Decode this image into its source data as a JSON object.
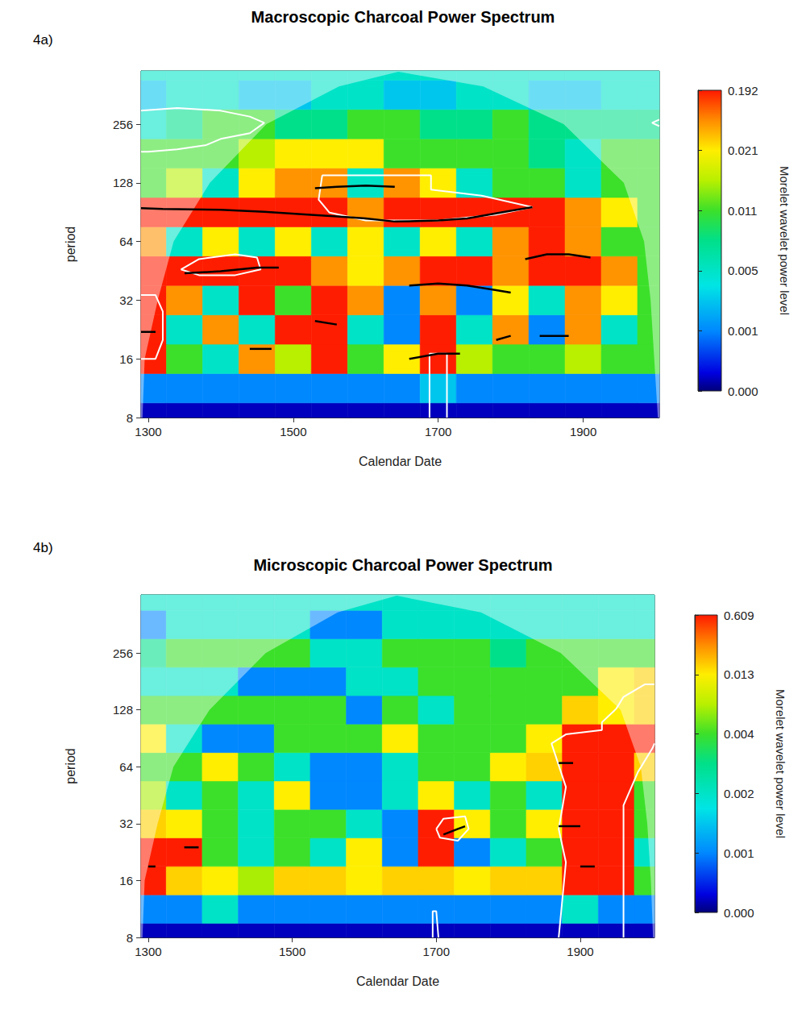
{
  "chart_data": [
    {
      "type": "heatmap",
      "title": "Macroscopic Charcoal Power Spectrum",
      "annotations": [
        "4a)"
      ],
      "x_label": "Calendar Date",
      "y_label": "period",
      "log": "y",
      "xlim": [
        1290,
        2005
      ],
      "xticks": [
        1300,
        1500,
        1700,
        1900
      ],
      "ylim": [
        8,
        480
      ],
      "yticks": [
        8,
        16,
        32,
        64,
        128,
        256
      ],
      "x": [
        1300,
        1350,
        1400,
        1450,
        1500,
        1550,
        1600,
        1650,
        1700,
        1750,
        1800,
        1850,
        1900,
        1950,
        2000
      ],
      "y": [
        8,
        11.3,
        16,
        22.6,
        32,
        45.3,
        64,
        90.5,
        128,
        181,
        256,
        362,
        512
      ],
      "values": [
        [
          0.0002,
          0.0002,
          0.0002,
          0.0002,
          0.0002,
          0.0002,
          0.0002,
          0.0002,
          0.0002,
          0.0002,
          0.0002,
          0.0002,
          0.0002,
          0.0002,
          0.0002
        ],
        [
          0.001,
          0.001,
          0.001,
          0.001,
          0.001,
          0.001,
          0.001,
          0.001,
          0.003,
          0.001,
          0.001,
          0.001,
          0.001,
          0.001,
          0.001
        ],
        [
          0.19,
          0.011,
          0.005,
          0.1,
          0.016,
          0.19,
          0.011,
          0.021,
          0.19,
          0.016,
          0.011,
          0.011,
          0.016,
          0.011,
          0.011
        ],
        [
          0.19,
          0.005,
          0.1,
          0.005,
          0.19,
          0.19,
          0.005,
          0.001,
          0.19,
          0.005,
          0.1,
          0.001,
          0.1,
          0.005,
          0.011
        ],
        [
          0.19,
          0.1,
          0.005,
          0.19,
          0.011,
          0.19,
          0.1,
          0.001,
          0.1,
          0.001,
          0.021,
          0.005,
          0.1,
          0.021,
          0.011
        ],
        [
          0.19,
          0.19,
          0.19,
          0.19,
          0.19,
          0.1,
          0.021,
          0.1,
          0.19,
          0.19,
          0.1,
          0.19,
          0.19,
          0.1,
          0.011
        ],
        [
          0.1,
          0.005,
          0.021,
          0.005,
          0.021,
          0.005,
          0.021,
          0.005,
          0.021,
          0.005,
          0.1,
          0.19,
          0.1,
          0.011,
          0.011
        ],
        [
          0.19,
          0.19,
          0.19,
          0.19,
          0.19,
          0.19,
          0.1,
          0.19,
          0.19,
          0.19,
          0.19,
          0.19,
          0.1,
          0.021,
          0.011
        ],
        [
          0.011,
          0.016,
          0.005,
          0.021,
          0.1,
          0.1,
          0.005,
          0.1,
          0.021,
          0.005,
          0.011,
          0.011,
          0.005,
          0.011,
          0.011
        ],
        [
          0.011,
          0.011,
          0.011,
          0.016,
          0.021,
          0.021,
          0.021,
          0.011,
          0.011,
          0.011,
          0.011,
          0.008,
          0.005,
          0.011,
          0.011
        ],
        [
          0.005,
          0.008,
          0.011,
          0.011,
          0.008,
          0.008,
          0.011,
          0.011,
          0.008,
          0.008,
          0.011,
          0.008,
          0.008,
          0.008,
          0.008
        ],
        [
          0.003,
          0.005,
          0.005,
          0.003,
          0.003,
          0.005,
          0.005,
          0.003,
          0.003,
          0.005,
          0.005,
          0.003,
          0.003,
          0.005,
          0.005
        ],
        [
          0.005,
          0.005,
          0.005,
          0.005,
          0.005,
          0.005,
          0.005,
          0.005,
          0.005,
          0.005,
          0.005,
          0.005,
          0.005,
          0.005,
          0.005
        ]
      ],
      "colorbar": {
        "label": "Morelet wavelet power level",
        "range": [
          0,
          0.192
        ],
        "ticks": [
          {
            "value": 0,
            "label": "0.000"
          },
          0.001,
          0.005,
          0.011,
          0.021,
          0.192
        ]
      },
      "cone_of_influence": [
        [
          1292,
          8
        ],
        [
          1295,
          16
        ],
        [
          1313,
          32
        ],
        [
          1335,
          64
        ],
        [
          1385,
          128
        ],
        [
          1463,
          256
        ],
        [
          1563,
          400
        ],
        [
          1645,
          475
        ],
        [
          1762,
          400
        ],
        [
          1873,
          256
        ],
        [
          1956,
          128
        ],
        [
          1984,
          64
        ],
        [
          1993,
          32
        ],
        [
          1998,
          16
        ],
        [
          2003,
          8
        ]
      ],
      "contours": [
        [
          [
            1290,
            300
          ],
          [
            1340,
            310
          ],
          [
            1400,
            300
          ],
          [
            1440,
            280
          ],
          [
            1460,
            260
          ],
          [
            1440,
            230
          ],
          [
            1400,
            215
          ],
          [
            1380,
            200
          ],
          [
            1340,
            190
          ],
          [
            1300,
            185
          ],
          [
            1290,
            185
          ]
        ],
        [
          [
            1540,
            140
          ],
          [
            1690,
            140
          ],
          [
            1690,
            118
          ],
          [
            1760,
            110
          ],
          [
            1830,
            96
          ],
          [
            1780,
            88
          ],
          [
            1700,
            82
          ],
          [
            1600,
            82
          ],
          [
            1550,
            90
          ],
          [
            1535,
            105
          ],
          [
            1540,
            140
          ]
        ],
        [
          [
            1345,
            46
          ],
          [
            1370,
            52
          ],
          [
            1420,
            55
          ],
          [
            1450,
            53
          ],
          [
            1455,
            46
          ],
          [
            1420,
            43
          ],
          [
            1370,
            43
          ],
          [
            1345,
            46
          ]
        ],
        [
          [
            1290,
            34
          ],
          [
            1310,
            34
          ],
          [
            1320,
            28
          ],
          [
            1320,
            20
          ],
          [
            1310,
            16
          ],
          [
            1290,
            16
          ]
        ],
        [
          [
            1688,
            8
          ],
          [
            1688,
            17
          ],
          [
            1712,
            17
          ],
          [
            1712,
            8
          ]
        ],
        [
          [
            2005,
            270
          ],
          [
            1995,
            260
          ],
          [
            2005,
            250
          ]
        ]
      ],
      "ridges": [
        [
          [
            1290,
            95
          ],
          [
            1320,
            94
          ],
          [
            1400,
            93
          ],
          [
            1460,
            91
          ],
          [
            1520,
            88
          ],
          [
            1560,
            86
          ],
          [
            1600,
            84
          ],
          [
            1640,
            81
          ],
          [
            1700,
            82
          ],
          [
            1740,
            84
          ],
          [
            1770,
            88
          ],
          [
            1800,
            92
          ],
          [
            1830,
            96
          ]
        ],
        [
          [
            1530,
            120
          ],
          [
            1560,
            122
          ],
          [
            1600,
            124
          ],
          [
            1640,
            122
          ]
        ],
        [
          [
            1350,
            44
          ],
          [
            1400,
            45
          ],
          [
            1450,
            47
          ],
          [
            1480,
            47
          ]
        ],
        [
          [
            1290,
            22
          ],
          [
            1310,
            22
          ]
        ],
        [
          [
            1440,
            18
          ],
          [
            1470,
            18
          ]
        ],
        [
          [
            1530,
            25
          ],
          [
            1560,
            24
          ]
        ],
        [
          [
            1660,
            38
          ],
          [
            1700,
            39
          ],
          [
            1740,
            38
          ],
          [
            1780,
            36
          ],
          [
            1800,
            35
          ]
        ],
        [
          [
            1820,
            52
          ],
          [
            1850,
            55
          ],
          [
            1880,
            55
          ],
          [
            1910,
            53
          ]
        ],
        [
          [
            1660,
            16
          ],
          [
            1700,
            17
          ],
          [
            1730,
            17
          ]
        ],
        [
          [
            1840,
            21
          ],
          [
            1880,
            21
          ]
        ],
        [
          [
            1780,
            20
          ],
          [
            1800,
            21
          ]
        ]
      ]
    },
    {
      "type": "heatmap",
      "title": "Microscopic Charcoal Power Spectrum",
      "annotations": [
        "4b)"
      ],
      "x_label": "Calendar Date",
      "y_label": "period",
      "log": "y",
      "xlim": [
        1290,
        2003
      ],
      "xticks": [
        1300,
        1500,
        1700,
        1900
      ],
      "ylim": [
        8,
        520
      ],
      "yticks": [
        8,
        16,
        32,
        64,
        128,
        256
      ],
      "x": [
        1300,
        1350,
        1400,
        1450,
        1500,
        1550,
        1600,
        1650,
        1700,
        1750,
        1800,
        1850,
        1900,
        1950,
        2000
      ],
      "y": [
        8,
        11.3,
        16,
        22.6,
        32,
        45.3,
        64,
        90.5,
        128,
        181,
        256,
        362,
        512
      ],
      "values": [
        [
          0.0002,
          0.0002,
          0.0002,
          0.0002,
          0.0002,
          0.0002,
          0.0002,
          0.0002,
          0.0002,
          0.0002,
          0.0002,
          0.0002,
          0.0002,
          0.0002,
          0.0002
        ],
        [
          0.001,
          0.001,
          0.002,
          0.001,
          0.001,
          0.001,
          0.001,
          0.001,
          0.001,
          0.001,
          0.001,
          0.001,
          0.002,
          0.001,
          0.001
        ],
        [
          0.6,
          0.1,
          0.013,
          0.008,
          0.1,
          0.1,
          0.013,
          0.1,
          0.1,
          0.013,
          0.1,
          0.1,
          0.6,
          0.6,
          0.004
        ],
        [
          0.6,
          0.6,
          0.004,
          0.002,
          0.004,
          0.002,
          0.013,
          0.001,
          0.6,
          0.001,
          0.002,
          0.004,
          0.6,
          0.6,
          0.002
        ],
        [
          0.1,
          0.013,
          0.004,
          0.002,
          0.004,
          0.004,
          0.002,
          0.001,
          0.6,
          0.013,
          0.004,
          0.013,
          0.6,
          0.6,
          0.004
        ],
        [
          0.008,
          0.002,
          0.004,
          0.002,
          0.013,
          0.001,
          0.001,
          0.002,
          0.013,
          0.002,
          0.004,
          0.002,
          0.6,
          0.6,
          0.004
        ],
        [
          0.004,
          0.004,
          0.013,
          0.004,
          0.002,
          0.001,
          0.001,
          0.002,
          0.004,
          0.004,
          0.013,
          0.1,
          0.6,
          0.6,
          0.1
        ],
        [
          0.013,
          0.002,
          0.001,
          0.001,
          0.004,
          0.004,
          0.004,
          0.013,
          0.004,
          0.004,
          0.004,
          0.013,
          0.6,
          0.6,
          0.6
        ],
        [
          0.004,
          0.004,
          0.004,
          0.004,
          0.004,
          0.004,
          0.001,
          0.004,
          0.002,
          0.004,
          0.004,
          0.004,
          0.1,
          0.013,
          0.1
        ],
        [
          0.002,
          0.002,
          0.002,
          0.001,
          0.001,
          0.001,
          0.002,
          0.002,
          0.004,
          0.004,
          0.004,
          0.004,
          0.004,
          0.013,
          0.1
        ],
        [
          0.003,
          0.004,
          0.004,
          0.004,
          0.004,
          0.002,
          0.002,
          0.004,
          0.004,
          0.004,
          0.003,
          0.004,
          0.004,
          0.004,
          0.004
        ],
        [
          0.001,
          0.002,
          0.002,
          0.002,
          0.002,
          0.001,
          0.001,
          0.002,
          0.002,
          0.002,
          0.002,
          0.002,
          0.002,
          0.002,
          0.002
        ],
        [
          0.002,
          0.002,
          0.002,
          0.002,
          0.002,
          0.002,
          0.002,
          0.002,
          0.002,
          0.002,
          0.002,
          0.002,
          0.002,
          0.002,
          0.002
        ]
      ],
      "colorbar": {
        "label": "Morelet wavelet power level",
        "range": [
          0,
          0.609
        ],
        "ticks": [
          {
            "value": 0,
            "label": "0.000"
          },
          0.001,
          0.002,
          0.004,
          0.013,
          0.609
        ]
      },
      "cone_of_influence": [
        [
          1292,
          8
        ],
        [
          1295,
          16
        ],
        [
          1313,
          32
        ],
        [
          1335,
          64
        ],
        [
          1385,
          128
        ],
        [
          1463,
          256
        ],
        [
          1563,
          420
        ],
        [
          1645,
          515
        ],
        [
          1762,
          420
        ],
        [
          1873,
          256
        ],
        [
          1956,
          128
        ],
        [
          1984,
          64
        ],
        [
          1993,
          32
        ],
        [
          1998,
          16
        ],
        [
          2001,
          8
        ]
      ],
      "contours": [
        [
          [
            1870,
            8
          ],
          [
            1880,
            20
          ],
          [
            1870,
            30
          ],
          [
            1880,
            50
          ],
          [
            1860,
            85
          ],
          [
            1880,
            95
          ],
          [
            1930,
            100
          ],
          [
            1930,
            110
          ],
          [
            1950,
            130
          ],
          [
            1960,
            150
          ],
          [
            1990,
            175
          ],
          [
            2003,
            175
          ]
        ],
        [
          [
            1960,
            8
          ],
          [
            1960,
            40
          ],
          [
            1980,
            60
          ],
          [
            2000,
            80
          ],
          [
            2003,
            85
          ]
        ],
        [
          [
            1700,
            30
          ],
          [
            1710,
            34
          ],
          [
            1740,
            35
          ],
          [
            1745,
            30
          ],
          [
            1730,
            26
          ],
          [
            1705,
            27
          ],
          [
            1700,
            30
          ]
        ],
        [
          [
            1695,
            8
          ],
          [
            1695,
            11
          ],
          [
            1700,
            11
          ],
          [
            1703,
            8
          ]
        ]
      ],
      "ridges": [
        [
          [
            1870,
            31
          ],
          [
            1900,
            31
          ]
        ],
        [
          [
            1900,
            19
          ],
          [
            1920,
            19
          ]
        ],
        [
          [
            1870,
            67
          ],
          [
            1890,
            67
          ]
        ],
        [
          [
            1350,
            24
          ],
          [
            1370,
            24
          ]
        ],
        [
          [
            1300,
            19
          ],
          [
            1310,
            19
          ]
        ],
        [
          [
            1710,
            28
          ],
          [
            1730,
            30
          ],
          [
            1740,
            31
          ]
        ]
      ]
    }
  ]
}
